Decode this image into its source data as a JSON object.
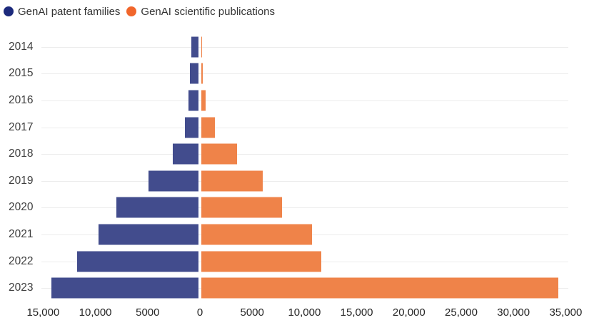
{
  "legend": {
    "items": [
      {
        "label": "GenAI patent families",
        "dot_color": "#1c2a7c"
      },
      {
        "label": "GenAI scientific publications",
        "dot_color": "#f1662b"
      }
    ]
  },
  "chart_data": {
    "type": "bar",
    "variant": "diverging-horizontal",
    "title": "",
    "categories": [
      "2014",
      "2015",
      "2016",
      "2017",
      "2018",
      "2019",
      "2020",
      "2021",
      "2022",
      "2023"
    ],
    "series": [
      {
        "name": "GenAI patent families",
        "side": "left",
        "color": "#424c8d",
        "values": [
          733,
          872,
          968,
          1358,
          2478,
          4796,
          7907,
          9617,
          11639,
          14080
        ]
      },
      {
        "name": "GenAI scientific publications",
        "side": "right",
        "color": "#ef8349",
        "values": [
          116,
          181,
          445,
          1357,
          3455,
          5904,
          7770,
          10617,
          11530,
          34177
        ]
      }
    ],
    "x_axis": {
      "left_max": 15000,
      "right_max": 35000,
      "tick_interval": 5000,
      "ticks": [
        {
          "value": -15000,
          "label": "15,000"
        },
        {
          "value": -10000,
          "label": "10,000"
        },
        {
          "value": -5000,
          "label": "5000"
        },
        {
          "value": 0,
          "label": "0"
        },
        {
          "value": 5000,
          "label": "5000"
        },
        {
          "value": 10000,
          "label": "10,000"
        },
        {
          "value": 15000,
          "label": "15,000"
        },
        {
          "value": 20000,
          "label": "20,000"
        },
        {
          "value": 25000,
          "label": "25,000"
        },
        {
          "value": 30000,
          "label": "30,000"
        },
        {
          "value": 35000,
          "label": "35,000"
        }
      ]
    },
    "grid": true,
    "legend_position": "top-left"
  }
}
